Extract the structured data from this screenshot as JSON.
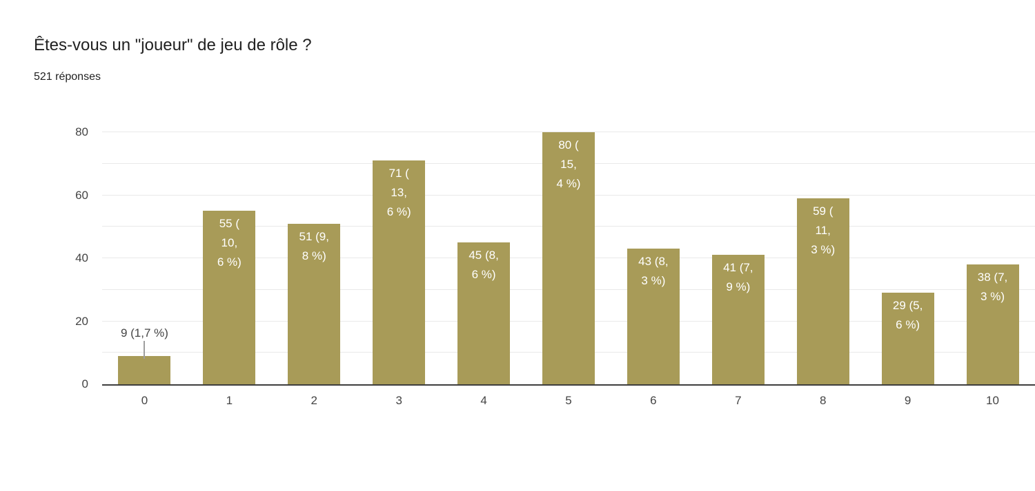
{
  "chart_data": {
    "type": "bar",
    "title": "Êtes-vous un \"joueur\" de jeu de rôle ?",
    "subtitle": "521 réponses",
    "total_responses": 521,
    "categories": [
      "0",
      "1",
      "2",
      "3",
      "4",
      "5",
      "6",
      "7",
      "8",
      "9",
      "10"
    ],
    "values": [
      9,
      55,
      51,
      71,
      45,
      80,
      43,
      41,
      59,
      29,
      38
    ],
    "labels": [
      "9 (1,7 %)",
      "55 (10,6 %)",
      "51 (9,8 %)",
      "71 (13,6 %)",
      "45 (8,6 %)",
      "80 (15,4 %)",
      "43 (8,3 %)",
      "41 (7,9 %)",
      "59 (11,3 %)",
      "29 (5,6 %)",
      "38 (7,3 %)"
    ],
    "label_lines": [
      [
        "9 (1,7 %)"
      ],
      [
        "55 (",
        "10,",
        "6 %)"
      ],
      [
        "51 (9,",
        "8 %)"
      ],
      [
        "71 (",
        "13,",
        "6 %)"
      ],
      [
        "45 (8,",
        "6 %)"
      ],
      [
        "80 (",
        "15,",
        "4 %)"
      ],
      [
        "43 (8,",
        "3 %)"
      ],
      [
        "41 (7,",
        "9 %)"
      ],
      [
        "59 (",
        "11,",
        "3 %)"
      ],
      [
        "29 (5,",
        "6 %)"
      ],
      [
        "38 (7,",
        "3 %)"
      ]
    ],
    "label_position": [
      "outside",
      "inside",
      "inside",
      "inside",
      "inside",
      "inside",
      "inside",
      "inside",
      "inside",
      "inside",
      "inside"
    ],
    "xlabel": "",
    "ylabel": "",
    "ylim": [
      0,
      80
    ],
    "yticks": [
      0,
      20,
      40,
      60,
      80
    ],
    "grid_step": 10,
    "grid": true,
    "legend_position": "none",
    "colors": {
      "bar": "#a89b58",
      "bar_label": "#ffffff",
      "outside_label": "#444444",
      "annotation_stem": "#9e9e9e",
      "gridline": "#e9e9e9",
      "baseline": "#3d3d3d",
      "axis_label": "#444444",
      "title": "#212121",
      "background": "#ffffff"
    }
  }
}
